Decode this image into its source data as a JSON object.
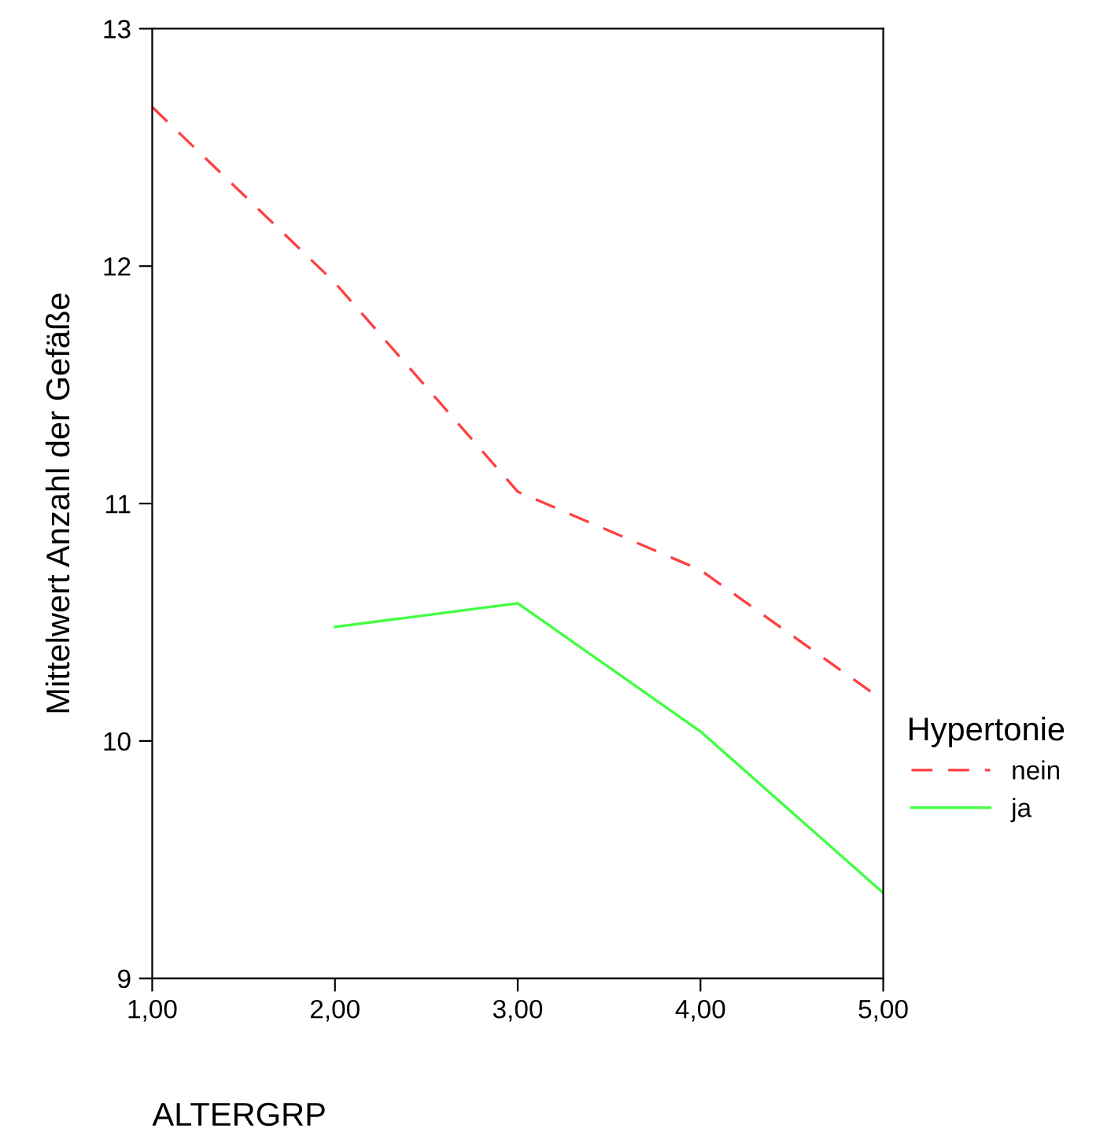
{
  "chart_data": {
    "type": "line",
    "xlabel": "ALTERGRP",
    "ylabel": "Mittelwert Anzahl der Gefäße",
    "legend_title": "Hypertonie",
    "legend": "right",
    "grid": false,
    "marker": "none",
    "x": [
      1,
      2,
      3,
      4,
      5
    ],
    "xlim": [
      1,
      5
    ],
    "xticks": [
      {
        "value": 1,
        "label": "1,00"
      },
      {
        "value": 2,
        "label": "2,00"
      },
      {
        "value": 3,
        "label": "3,00"
      },
      {
        "value": 4,
        "label": "4,00"
      },
      {
        "value": 5,
        "label": "5,00"
      }
    ],
    "ylim": [
      9,
      13
    ],
    "yticks": [
      9,
      10,
      11,
      12,
      13
    ],
    "series": [
      {
        "name": "nein",
        "color": "#ff4040",
        "line_style": "dashed",
        "values": [
          12.67,
          11.93,
          11.05,
          10.72,
          10.17
        ]
      },
      {
        "name": "ja",
        "color": "#40ff40",
        "line_style": "solid",
        "values": [
          null,
          10.48,
          10.58,
          10.04,
          9.36
        ]
      }
    ]
  }
}
